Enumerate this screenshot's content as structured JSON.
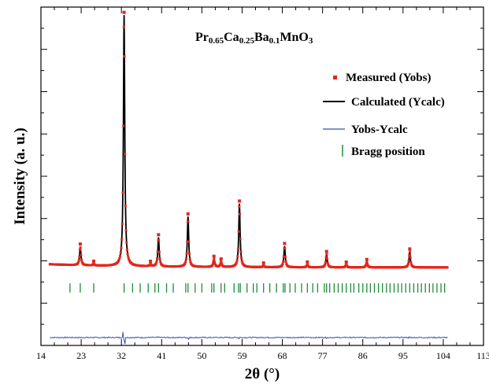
{
  "chart_data": {
    "type": "line",
    "title": {
      "parts": [
        {
          "text": "Pr",
          "sub": false
        },
        {
          "text": "0.65",
          "sub": true
        },
        {
          "text": "Ca",
          "sub": false
        },
        {
          "text": "0.25",
          "sub": true
        },
        {
          "text": "Ba",
          "sub": false
        },
        {
          "text": "0.1",
          "sub": true
        },
        {
          "text": "MnO",
          "sub": false
        },
        {
          "text": "3",
          "sub": true
        }
      ]
    },
    "xlabel": "2θ (°)",
    "ylabel": "Intensity (a. u.)",
    "xlim": [
      14,
      113
    ],
    "ylim": [
      -0.28,
      1.0
    ],
    "x_ticks": [
      14,
      23,
      32,
      41,
      50,
      59,
      68,
      77,
      86,
      95,
      104,
      113
    ],
    "x_range_data": [
      16,
      105
    ],
    "baseline": 0.015,
    "diff_offset": -0.25,
    "y_ticks_labeled": false,
    "legend_position": "top-right",
    "colors": {
      "measured": "#e3271c",
      "calculated": "#000000",
      "difference": "#3a50b0",
      "bragg": "#1f8a3a"
    },
    "series": [
      {
        "name": "Measured (Yobs)",
        "style": "points"
      },
      {
        "name": "Calculated (Ycalc)",
        "style": "line"
      },
      {
        "name": "Yobs-Ycalc",
        "style": "line"
      },
      {
        "name": "Bragg position",
        "style": "bars"
      }
    ],
    "peaks": [
      {
        "x": 22.8,
        "height": 0.07
      },
      {
        "x": 25.8,
        "height": 0.006
      },
      {
        "x": 32.6,
        "height": 0.95
      },
      {
        "x": 38.5,
        "height": 0.008
      },
      {
        "x": 40.3,
        "height": 0.11
      },
      {
        "x": 46.9,
        "height": 0.19
      },
      {
        "x": 52.7,
        "height": 0.03
      },
      {
        "x": 54.3,
        "height": 0.02
      },
      {
        "x": 58.4,
        "height": 0.24
      },
      {
        "x": 63.8,
        "height": 0.006
      },
      {
        "x": 68.5,
        "height": 0.08
      },
      {
        "x": 73.6,
        "height": 0.01
      },
      {
        "x": 77.9,
        "height": 0.05
      },
      {
        "x": 82.3,
        "height": 0.01
      },
      {
        "x": 86.9,
        "height": 0.02
      },
      {
        "x": 96.5,
        "height": 0.06
      }
    ],
    "bragg_positions": [
      20.5,
      22.8,
      25.8,
      32.6,
      34.5,
      36.2,
      38.0,
      39.5,
      40.3,
      42.1,
      43.6,
      46.4,
      46.9,
      48.5,
      50.0,
      52.2,
      52.7,
      54.3,
      55.1,
      57.2,
      58.2,
      58.6,
      60.1,
      61.5,
      62.3,
      63.8,
      65.2,
      66.7,
      68.2,
      68.6,
      69.7,
      70.9,
      72.3,
      73.6,
      74.8,
      75.9,
      77.4,
      77.9,
      78.6,
      79.6,
      80.5,
      81.4,
      82.3,
      83.3,
      84.0,
      85.1,
      86.0,
      86.9,
      87.7,
      88.6,
      89.5,
      90.4,
      91.3,
      92.1,
      93.0,
      93.9,
      94.7,
      95.6,
      96.5,
      97.4,
      98.3,
      99.1,
      100.0,
      100.9,
      101.7,
      102.6,
      103.5,
      104.3
    ]
  }
}
